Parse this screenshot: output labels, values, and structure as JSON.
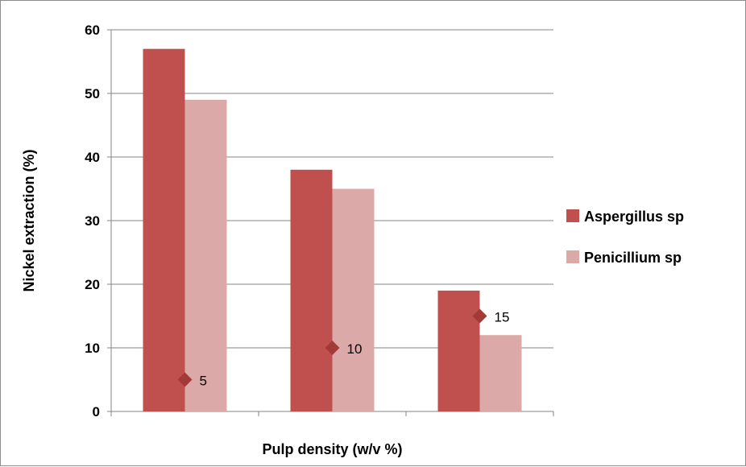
{
  "chart_data": {
    "type": "bar",
    "categories": [
      "",
      "",
      ""
    ],
    "series": [
      {
        "name": "Aspergillus sp",
        "values": [
          57,
          38,
          19
        ],
        "color": "#c0504d"
      },
      {
        "name": "Penicillium sp",
        "values": [
          49,
          35,
          12
        ],
        "color": "#dba9a8"
      }
    ],
    "markers": {
      "color": "#a23a37",
      "shape": "diamond",
      "x": [
        5,
        10,
        15
      ],
      "y": [
        5,
        10,
        15
      ],
      "labels": [
        "5",
        "10",
        "15"
      ]
    },
    "xlabel": "Pulp density (w/v %)",
    "ylabel": "Nickel extraction (%)",
    "ylim": [
      0,
      60
    ],
    "yticks": [
      "0",
      "10",
      "20",
      "30",
      "40",
      "50",
      "60"
    ],
    "grid": true,
    "legend": "right"
  }
}
